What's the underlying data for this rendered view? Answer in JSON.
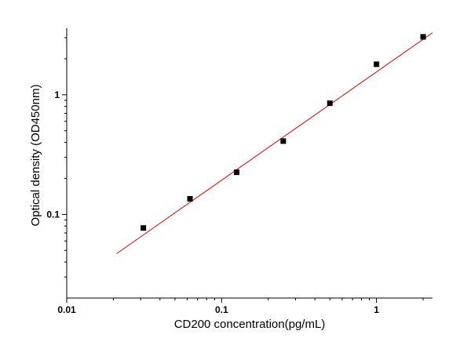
{
  "chart_data": {
    "type": "scatter",
    "title": "",
    "xlabel": "CD200  concentration(pg/mL)",
    "ylabel": "Optical density (OD450nm)",
    "x_scale": "log",
    "y_scale": "log",
    "xlim": [
      0.01,
      2.3
    ],
    "ylim": [
      0.02,
      3.6
    ],
    "x_ticks": [
      {
        "value": 0.01,
        "label": "0.01"
      },
      {
        "value": 0.1,
        "label": "0.1"
      },
      {
        "value": 1,
        "label": "1"
      }
    ],
    "y_ticks": [
      {
        "value": 0.1,
        "label": "0.1"
      },
      {
        "value": 1,
        "label": "1"
      }
    ],
    "grid": false,
    "series": [
      {
        "points": [
          {
            "x": 0.03125,
            "y": 0.077
          },
          {
            "x": 0.0625,
            "y": 0.135
          },
          {
            "x": 0.125,
            "y": 0.225
          },
          {
            "x": 0.25,
            "y": 0.41
          },
          {
            "x": 0.5,
            "y": 0.85
          },
          {
            "x": 1,
            "y": 1.8
          },
          {
            "x": 2,
            "y": 3.05
          }
        ],
        "color": "#000000"
      }
    ],
    "fit_line": {
      "x": [
        0.021,
        2.3
      ],
      "y": [
        0.047,
        3.3
      ],
      "color": "#e00000"
    }
  }
}
